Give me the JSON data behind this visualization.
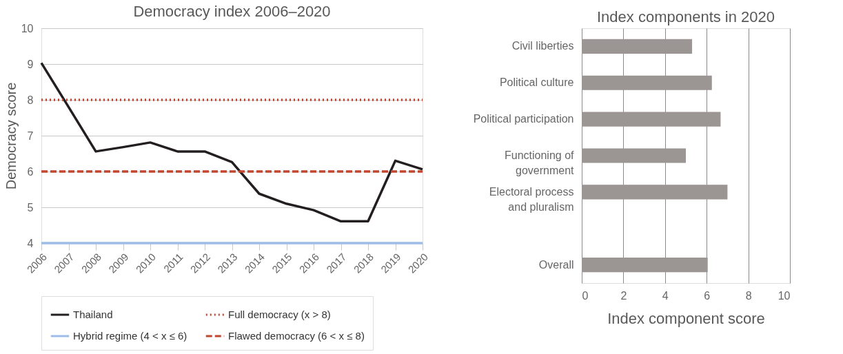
{
  "chart_data": [
    {
      "type": "line",
      "title": "Democracy index 2006–2020",
      "ylabel": "Democracy score",
      "categories": [
        "2006",
        "2007",
        "2008",
        "2009",
        "2010",
        "2011",
        "2012",
        "2013",
        "2014",
        "2015",
        "2016",
        "2017",
        "2018",
        "2019",
        "2020"
      ],
      "ylim": [
        4,
        10
      ],
      "yticks": [
        4,
        5,
        6,
        7,
        8,
        9,
        10
      ],
      "grid": "y",
      "legend": "bottom",
      "marker": "none",
      "series": [
        {
          "name": "Thailand",
          "color": "#231f20",
          "line_style": "solid",
          "values": [
            9.03,
            7.8,
            6.56,
            6.68,
            6.81,
            6.56,
            6.56,
            6.26,
            5.38,
            5.1,
            4.92,
            4.61,
            4.61,
            6.3,
            6.06
          ]
        },
        {
          "name": "Full democracy (x > 8)",
          "color": "#c2452d",
          "line_style": "dotted",
          "values": [
            8,
            8,
            8,
            8,
            8,
            8,
            8,
            8,
            8,
            8,
            8,
            8,
            8,
            8,
            8
          ]
        },
        {
          "name": "Hybrid regime (4 < x ≤ 6)",
          "color": "#9dbde6",
          "line_style": "solid",
          "values": [
            4,
            4,
            4,
            4,
            4,
            4,
            4,
            4,
            4,
            4,
            4,
            4,
            4,
            4,
            4
          ]
        },
        {
          "name": "Flawed democracy (6 < x ≤ 8)",
          "color": "#c2452d",
          "line_style": "dashed",
          "values": [
            6,
            6,
            6,
            6,
            6,
            6,
            6,
            6,
            6,
            6,
            6,
            6,
            6,
            6,
            6
          ]
        }
      ]
    },
    {
      "type": "bar",
      "orientation": "horizontal",
      "title": "Index components in 2020",
      "xlabel": "Index component score",
      "categories": [
        "Civil liberties",
        "Political culture",
        "Political participation",
        "Functioning of\ngovernment",
        "Electoral process\nand pluralism",
        null,
        "Overall"
      ],
      "values": [
        5.3,
        6.25,
        6.67,
        5.0,
        7.0,
        null,
        6.05
      ],
      "color": "#9b9594",
      "xlim": [
        0,
        10
      ],
      "xticks": [
        0,
        2,
        4,
        6,
        8,
        10
      ],
      "grid": "x"
    }
  ]
}
